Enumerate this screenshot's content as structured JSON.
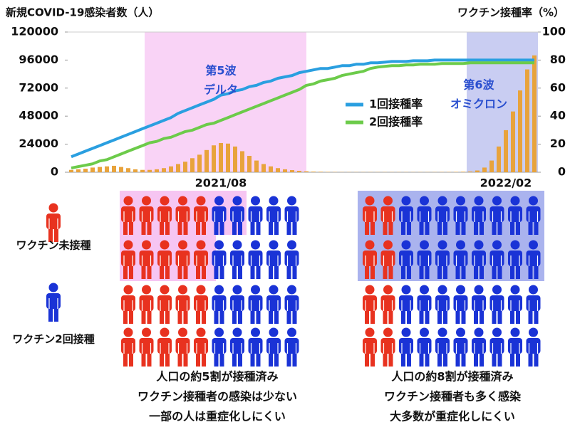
{
  "chart_data": {
    "type": "combo",
    "title": "新規COVID-19感染者数（人）",
    "y2_title": "ワクチン接種率（%）",
    "categories": [
      null,
      null,
      null,
      null,
      null,
      null,
      null,
      null,
      null,
      null,
      null,
      null,
      null,
      null,
      null,
      null,
      null,
      null,
      null,
      null,
      null,
      "2021/08",
      null,
      null,
      null,
      null,
      null,
      null,
      null,
      null,
      null,
      null,
      null,
      null,
      null,
      null,
      null,
      null,
      null,
      null,
      null,
      null,
      null,
      null,
      null,
      null,
      null,
      null,
      null,
      null,
      null,
      null,
      null,
      null,
      null,
      null,
      null,
      null,
      null,
      null,
      null,
      "2022/02",
      null,
      null,
      null,
      null
    ],
    "series": [
      {
        "color": "#e8a33c",
        "values": [
          2000,
          2500,
          3000,
          4000,
          4500,
          5000,
          5500,
          4500,
          3500,
          2500,
          2000,
          2000,
          2500,
          3500,
          5000,
          7000,
          9000,
          12000,
          15000,
          19000,
          23000,
          25000,
          24500,
          22000,
          18000,
          14000,
          10000,
          7000,
          5000,
          3500,
          2500,
          1800,
          1200,
          800,
          500,
          400,
          300,
          200,
          150,
          150,
          150,
          150,
          150,
          150,
          150,
          150,
          150,
          150,
          150,
          150,
          150,
          150,
          200,
          200,
          300,
          400,
          600,
          1500,
          4000,
          10000,
          22000,
          36000,
          52000,
          70000,
          88000,
          100000
        ]
      },
      {
        "name": "1回接種率",
        "color": "#2a9fe0",
        "axis": "y2",
        "values": [
          11,
          13,
          15,
          17,
          19,
          21,
          23,
          25,
          27,
          29,
          31,
          33,
          35,
          37,
          39,
          42,
          44,
          46,
          48,
          50,
          52,
          55,
          56,
          58,
          59,
          61,
          62,
          64,
          65,
          67,
          68,
          69,
          71,
          72,
          73,
          74,
          74,
          75,
          76,
          76,
          77,
          77,
          78,
          78,
          78.5,
          79,
          79,
          79,
          79.5,
          79.5,
          79.5,
          80,
          80,
          80,
          80,
          80,
          80,
          80,
          80,
          80,
          80,
          80,
          80,
          80,
          80,
          80
        ]
      },
      {
        "name": "2回接種率",
        "color": "#6ccb4a",
        "axis": "y2",
        "values": [
          3,
          4,
          5,
          6,
          8,
          9,
          11,
          13,
          15,
          17,
          19,
          21,
          22,
          24,
          25,
          27,
          29,
          30,
          32,
          34,
          35,
          37,
          39,
          41,
          43,
          45,
          47,
          49,
          51,
          53,
          55,
          57,
          59,
          62,
          63,
          65,
          66,
          67,
          69,
          70,
          71,
          72,
          74,
          75,
          75.5,
          76,
          76,
          76.5,
          76.5,
          77,
          77,
          77,
          77.5,
          77.5,
          77.5,
          77.5,
          78,
          78,
          78,
          78,
          78,
          78,
          78,
          78,
          78,
          78
        ]
      }
    ],
    "annotations": [
      {
        "lines": [
          "第5波",
          "デルタ"
        ]
      },
      {
        "lines": [
          "第6波",
          "オミクロン"
        ]
      }
    ],
    "ylim": [
      0,
      120000
    ],
    "yticks": [
      0,
      24000,
      48000,
      72000,
      96000,
      120000
    ],
    "y2lim": [
      0,
      100
    ],
    "y2ticks": [
      0,
      20,
      40,
      60,
      80,
      100
    ]
  },
  "pictograms": {
    "legend": [
      "ワクチン未接種",
      "ワクチン2回接種"
    ],
    "colors": [
      "#e8321f",
      "#1a33d6"
    ],
    "rows": 4,
    "panels": [
      {
        "unvaccinated": 5,
        "vaccinated": 5,
        "captions": [
          "人口の約5割が接種済み",
          "ワクチン接種者の感染は少ない",
          "一部の人は重症化しにくい"
        ]
      },
      {
        "unvaccinated": 2,
        "vaccinated": 8,
        "captions": [
          "人口の約8割が接種済み",
          "ワクチン接種者も多く感染",
          "大多数が重症化しにくい"
        ]
      }
    ]
  }
}
